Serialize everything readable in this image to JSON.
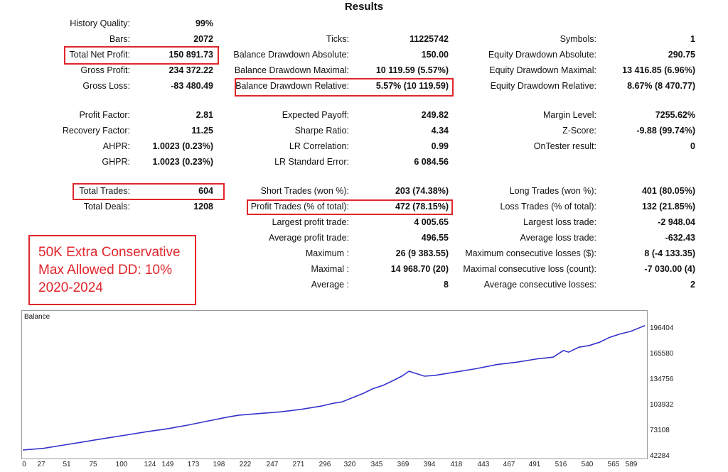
{
  "title": "Results",
  "stats": [
    {
      "label": "History Quality:",
      "value": "99%"
    },
    {
      "label": "Bars:",
      "value": "2072"
    },
    {
      "label": "Total Net Profit:",
      "value": "150 891.73"
    },
    {
      "label": "Gross Profit:",
      "value": "234 372.22"
    },
    {
      "label": "Gross Loss:",
      "value": "-83 480.49"
    },
    {
      "label": "Profit Factor:",
      "value": "2.81"
    },
    {
      "label": "Recovery Factor:",
      "value": "11.25"
    },
    {
      "label": "AHPR:",
      "value": "1.0023 (0.23%)"
    },
    {
      "label": "GHPR:",
      "value": "1.0023 (0.23%)"
    },
    {
      "label": "Total Trades:",
      "value": "604"
    },
    {
      "label": "Total Deals:",
      "value": "1208"
    },
    {
      "label": "Ticks:",
      "value": "11225742"
    },
    {
      "label": "Balance Drawdown Absolute:",
      "value": "150.00"
    },
    {
      "label": "Balance Drawdown Maximal:",
      "value": "10 119.59 (5.57%)"
    },
    {
      "label": "Balance Drawdown Relative:",
      "value": "5.57% (10 119.59)"
    },
    {
      "label": "Expected Payoff:",
      "value": "249.82"
    },
    {
      "label": "Sharpe Ratio:",
      "value": "4.34"
    },
    {
      "label": "LR Correlation:",
      "value": "0.99"
    },
    {
      "label": "LR Standard Error:",
      "value": "6 084.56"
    },
    {
      "label": "Short Trades (won %):",
      "value": "203 (74.38%)"
    },
    {
      "label": "Profit Trades (% of total):",
      "value": "472 (78.15%)"
    },
    {
      "label": "Largest profit trade:",
      "value": "4 005.65"
    },
    {
      "label": "Average profit trade:",
      "value": "496.55"
    },
    {
      "label": "Maximum :",
      "value": "26 (9 383.55)"
    },
    {
      "label": "Maximal :",
      "value": "14 968.70 (20)"
    },
    {
      "label": "Average :",
      "value": "8"
    },
    {
      "label": "Symbols:",
      "value": "1"
    },
    {
      "label": "Equity Drawdown Absolute:",
      "value": "290.75"
    },
    {
      "label": "Equity Drawdown Maximal:",
      "value": "13 416.85 (6.96%)"
    },
    {
      "label": "Equity Drawdown Relative:",
      "value": "8.67% (8 470.77)"
    },
    {
      "label": "Margin Level:",
      "value": "7255.62%"
    },
    {
      "label": "Z-Score:",
      "value": "-9.88 (99.74%)"
    },
    {
      "label": "OnTester result:",
      "value": "0"
    },
    {
      "label": "Long Trades (won %):",
      "value": "401 (80.05%)"
    },
    {
      "label": "Loss Trades (% of total):",
      "value": "132 (21.85%)"
    },
    {
      "label": "Largest loss trade:",
      "value": "-2 948.04"
    },
    {
      "label": "Average loss trade:",
      "value": "-632.43"
    },
    {
      "label": "Maximum consecutive losses ($):",
      "value": "8 (-4 133.35)"
    },
    {
      "label": "Maximal consecutive loss (count):",
      "value": "-7 030.00 (4)"
    },
    {
      "label": "Average consecutive losses:",
      "value": "2"
    }
  ],
  "note": {
    "line1": "50K Extra Conservative",
    "line2": "Max Allowed DD: 10%",
    "line3": "2020-2024"
  },
  "colors": {
    "highlight": "#e0262b",
    "series": "#3333cc"
  },
  "chart_data": {
    "type": "line",
    "title": "Balance",
    "xlim": [
      0,
      604
    ],
    "ylim": [
      42284,
      206000
    ],
    "x_ticks": [
      "0",
      "27",
      "51",
      "75",
      "100",
      "124",
      "149",
      "173",
      "198",
      "222",
      "247",
      "271",
      "296",
      "320",
      "345",
      "369",
      "394",
      "418",
      "443",
      "467",
      "491",
      "516",
      "540",
      "565",
      "589"
    ],
    "y_ticks": [
      "196404",
      "165580",
      "134756",
      "103932",
      "73108",
      "42284"
    ],
    "series": [
      {
        "x": [
          0,
          20,
          40,
          60,
          80,
          100,
          120,
          140,
          160,
          180,
          200,
          210,
          230,
          250,
          270,
          290,
          300,
          310,
          320,
          330,
          340,
          350,
          360,
          368,
          375,
          380,
          390,
          400,
          420,
          440,
          460,
          480,
          500,
          515,
          525,
          530,
          540,
          550,
          560,
          570,
          580,
          590,
          600,
          604
        ],
        "y": [
          50000,
          52000,
          56000,
          60000,
          64000,
          68000,
          72000,
          75500,
          80000,
          85000,
          90000,
          92000,
          94000,
          96000,
          99000,
          103000,
          106000,
          108000,
          113000,
          118000,
          124000,
          128000,
          134000,
          139000,
          145000,
          143000,
          139000,
          140000,
          144000,
          148000,
          153000,
          156000,
          160000,
          162000,
          170000,
          168000,
          174000,
          176000,
          180000,
          186000,
          190000,
          193000,
          198000,
          200000
        ]
      }
    ]
  }
}
